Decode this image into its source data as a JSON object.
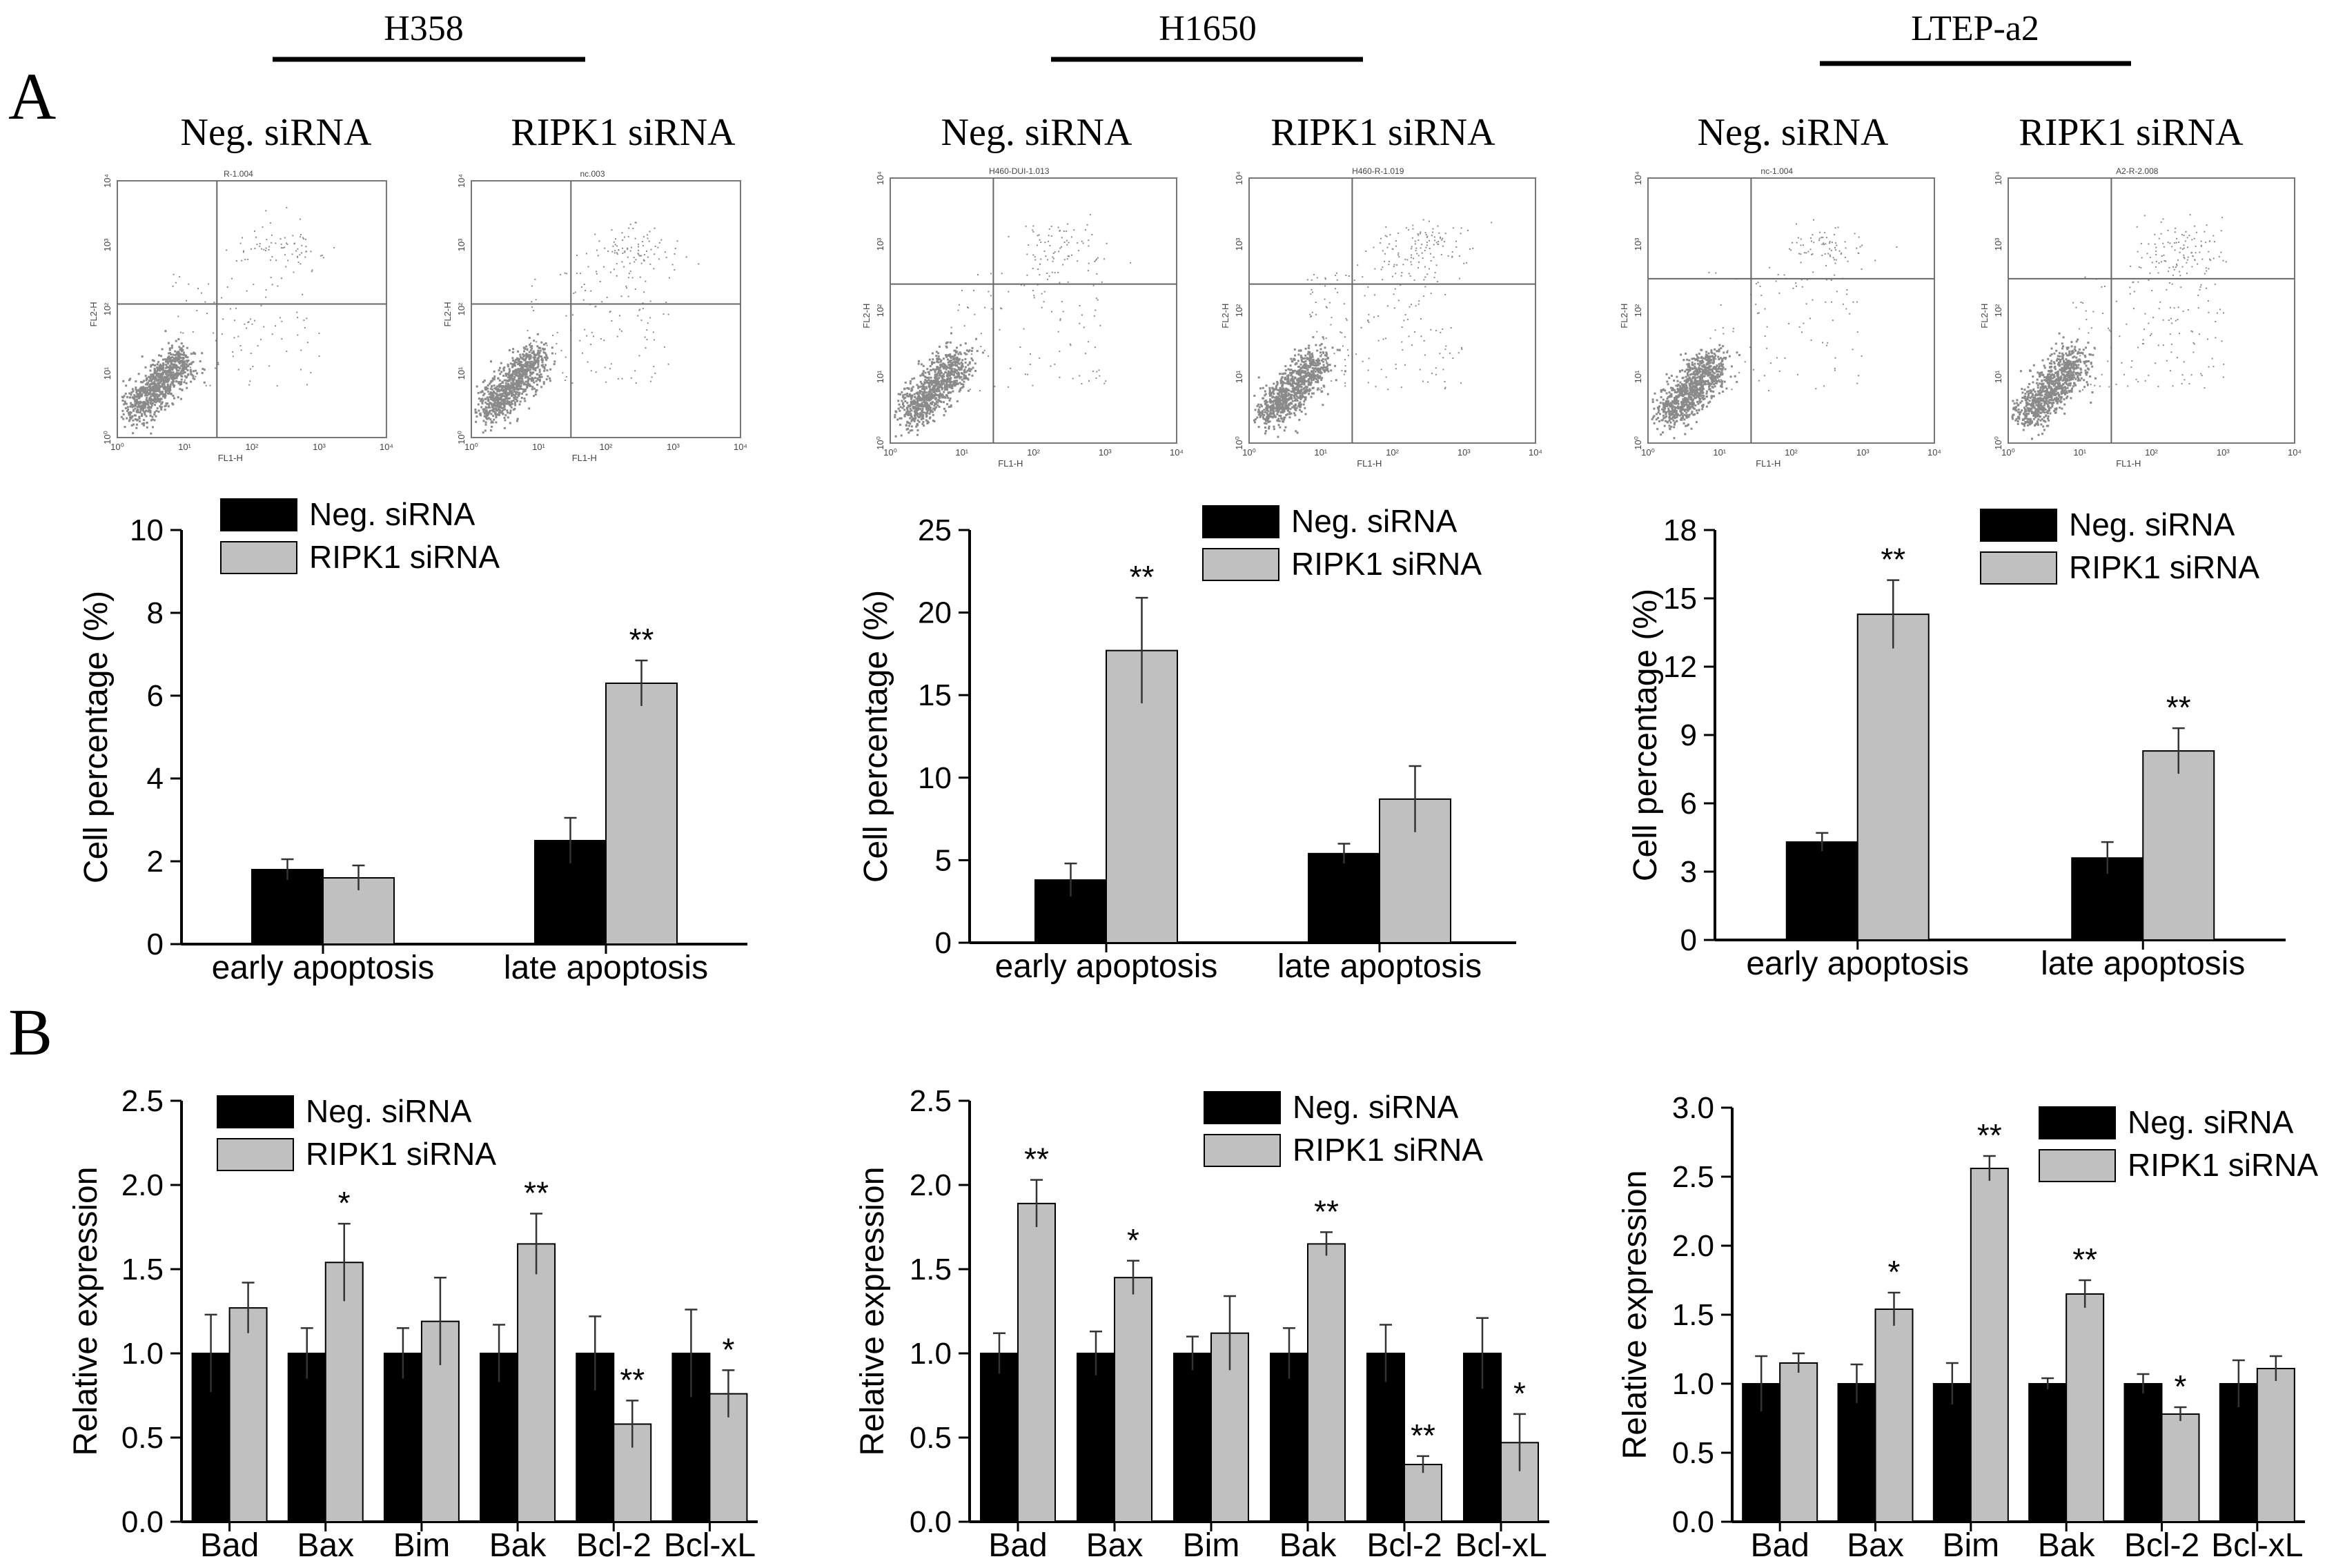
{
  "figure": {
    "panel_a_label": "A",
    "panel_b_label": "B",
    "series_names": [
      "Neg. siRNA",
      "RIPK1 siRNA"
    ],
    "colors": {
      "neg": "#000000",
      "ripk1": "#c0c0c0",
      "axis": "#000000",
      "dots": "#8a8a8a"
    },
    "columns": [
      {
        "cell_line": "H358",
        "flow_plots": [
          {
            "condition": "Neg. siRNA",
            "sample_id": "R-1.004",
            "x_label": "FL1-H",
            "y_label": "FL2-H"
          },
          {
            "condition": "RIPK1 siRNA",
            "sample_id": "nc.003",
            "x_label": "FL1-H",
            "y_label": "FL2-H"
          }
        ]
      },
      {
        "cell_line": "H1650",
        "flow_plots": [
          {
            "condition": "Neg. siRNA",
            "sample_id": "H460-DUI-1.013",
            "x_label": "FL1-H",
            "y_label": "FL2-H"
          },
          {
            "condition": "RIPK1 siRNA",
            "sample_id": "H460-R-1.019",
            "x_label": "FL1-H",
            "y_label": "FL2-H"
          }
        ]
      },
      {
        "cell_line": "LTEP-a2",
        "flow_plots": [
          {
            "condition": "Neg. siRNA",
            "sample_id": "nc-1.004",
            "x_label": "FL1-H",
            "y_label": "FL2-H"
          },
          {
            "condition": "RIPK1 siRNA",
            "sample_id": "A2-R-2.008",
            "x_label": "FL1-H",
            "y_label": "FL2-H"
          }
        ]
      }
    ],
    "flow_tick_labels": [
      "10⁰",
      "10¹",
      "10²",
      "10³",
      "10⁴"
    ]
  },
  "chart_data": [
    {
      "id": "A-H358",
      "type": "bar",
      "cell_line": "H358",
      "categories": [
        "early apoptosis",
        "late apoptosis"
      ],
      "series": [
        {
          "name": "Neg. siRNA",
          "values": [
            1.8,
            2.5
          ],
          "errors": [
            0.25,
            0.55
          ]
        },
        {
          "name": "RIPK1 siRNA",
          "values": [
            1.6,
            6.3
          ],
          "errors": [
            0.3,
            0.55
          ]
        }
      ],
      "significance": [
        [
          "",
          ""
        ],
        [
          "",
          "**"
        ]
      ],
      "ylabel": "Cell percentage (%)",
      "ylim": [
        0,
        10
      ],
      "yticks": [
        0,
        2,
        4,
        6,
        8,
        10
      ],
      "legend": "top-left"
    },
    {
      "id": "A-H1650",
      "type": "bar",
      "cell_line": "H1650",
      "categories": [
        "early apoptosis",
        "late apoptosis"
      ],
      "series": [
        {
          "name": "Neg. siRNA",
          "values": [
            3.8,
            5.4
          ],
          "errors": [
            1.0,
            0.6
          ]
        },
        {
          "name": "RIPK1 siRNA",
          "values": [
            17.7,
            8.7
          ],
          "errors": [
            3.2,
            2.0
          ]
        }
      ],
      "significance": [
        [
          "",
          ""
        ],
        [
          "**",
          ""
        ]
      ],
      "ylabel": "Cell percentage (%)",
      "ylim": [
        0,
        25
      ],
      "yticks": [
        0,
        5,
        10,
        15,
        20,
        25
      ],
      "legend": "top-right"
    },
    {
      "id": "A-LTEP-a2",
      "type": "bar",
      "cell_line": "LTEP-a2",
      "categories": [
        "early apoptosis",
        "late apoptosis"
      ],
      "series": [
        {
          "name": "Neg. siRNA",
          "values": [
            4.3,
            3.6
          ],
          "errors": [
            0.4,
            0.7
          ]
        },
        {
          "name": "RIPK1 siRNA",
          "values": [
            14.3,
            8.3
          ],
          "errors": [
            1.5,
            1.0
          ]
        }
      ],
      "significance": [
        [
          "",
          ""
        ],
        [
          "**",
          "**"
        ]
      ],
      "ylabel": "Cell percentage (%)",
      "ylim": [
        0,
        18
      ],
      "yticks": [
        0,
        3,
        6,
        9,
        12,
        15,
        18
      ],
      "legend": "top-right"
    },
    {
      "id": "B-H358",
      "type": "bar",
      "cell_line": "H358",
      "categories": [
        "Bad",
        "Bax",
        "Bim",
        "Bak",
        "Bcl-2",
        "Bcl-xL"
      ],
      "series": [
        {
          "name": "Neg. siRNA",
          "values": [
            1.0,
            1.0,
            1.0,
            1.0,
            1.0,
            1.0
          ],
          "errors": [
            0.23,
            0.15,
            0.15,
            0.17,
            0.22,
            0.26
          ]
        },
        {
          "name": "RIPK1 siRNA",
          "values": [
            1.27,
            1.54,
            1.19,
            1.65,
            0.58,
            0.76
          ],
          "errors": [
            0.15,
            0.23,
            0.26,
            0.18,
            0.14,
            0.14
          ]
        }
      ],
      "significance": [
        [
          "",
          "",
          "",
          "",
          "",
          ""
        ],
        [
          "",
          "*",
          "",
          "**",
          "**",
          "*"
        ]
      ],
      "ylabel": "Relative expression",
      "ylim": [
        0,
        2.5
      ],
      "yticks": [
        0,
        0.5,
        1.0,
        1.5,
        2.0,
        2.5
      ],
      "legend": "top-left"
    },
    {
      "id": "B-H1650",
      "type": "bar",
      "cell_line": "H1650",
      "categories": [
        "Bad",
        "Bax",
        "Bim",
        "Bak",
        "Bcl-2",
        "Bcl-xL"
      ],
      "series": [
        {
          "name": "Neg. siRNA",
          "values": [
            1.0,
            1.0,
            1.0,
            1.0,
            1.0,
            1.0
          ],
          "errors": [
            0.12,
            0.13,
            0.1,
            0.15,
            0.17,
            0.21
          ]
        },
        {
          "name": "RIPK1 siRNA",
          "values": [
            1.89,
            1.45,
            1.12,
            1.65,
            0.34,
            0.47
          ],
          "errors": [
            0.14,
            0.1,
            0.22,
            0.07,
            0.05,
            0.17
          ]
        }
      ],
      "significance": [
        [
          "",
          "",
          "",
          "",
          "",
          ""
        ],
        [
          "**",
          "*",
          "",
          "**",
          "**",
          "*"
        ]
      ],
      "ylabel": "Relative expression",
      "ylim": [
        0,
        2.5
      ],
      "yticks": [
        0,
        0.5,
        1.0,
        1.5,
        2.0,
        2.5
      ],
      "legend": "top-right"
    },
    {
      "id": "B-LTEP-a2",
      "type": "bar",
      "cell_line": "LTEP-a2",
      "categories": [
        "Bad",
        "Bax",
        "Bim",
        "Bak",
        "Bcl-2",
        "Bcl-xL"
      ],
      "series": [
        {
          "name": "Neg. siRNA",
          "values": [
            1.0,
            1.0,
            1.0,
            1.0,
            1.0,
            1.0
          ],
          "errors": [
            0.2,
            0.14,
            0.15,
            0.04,
            0.07,
            0.17
          ]
        },
        {
          "name": "RIPK1 siRNA",
          "values": [
            1.15,
            1.54,
            2.56,
            1.65,
            0.78,
            1.11
          ],
          "errors": [
            0.07,
            0.12,
            0.09,
            0.1,
            0.05,
            0.09
          ]
        }
      ],
      "significance": [
        [
          "",
          "",
          "",
          "",
          "",
          ""
        ],
        [
          "",
          "*",
          "**",
          "**",
          "*",
          ""
        ]
      ],
      "ylabel": "Relative expression",
      "ylim": [
        0,
        3.0
      ],
      "yticks": [
        0,
        0.5,
        1.0,
        1.5,
        2.0,
        2.5,
        3.0
      ],
      "legend": "top-right"
    }
  ]
}
